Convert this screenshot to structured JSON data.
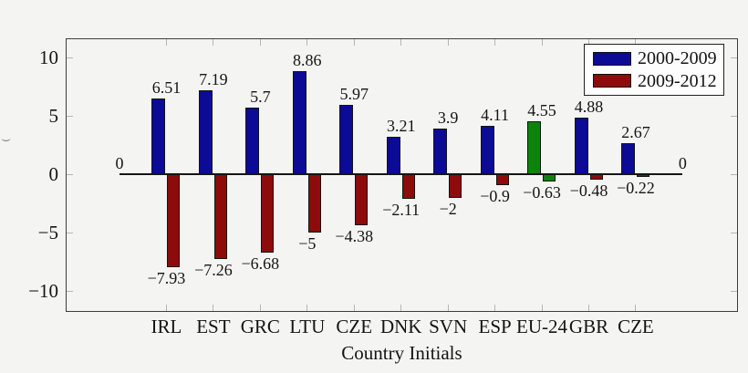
{
  "chart_data": {
    "type": "bar",
    "title": "",
    "xlabel": "Country Initials",
    "ylabel": "",
    "categories": [
      "IRL",
      "EST",
      "GRC",
      "LTU",
      "CZE",
      "DNK",
      "SVN",
      "ESP",
      "EU-24",
      "GBR",
      "CZE"
    ],
    "series": [
      {
        "name": "2000-2009",
        "color": "#0b0b96",
        "values": [
          6.51,
          7.19,
          5.7,
          8.86,
          5.97,
          3.21,
          3.9,
          4.11,
          4.55,
          4.88,
          2.67
        ],
        "labels": [
          "6.51",
          "7.19",
          "5.7",
          "8.86",
          "5.97",
          "3.21",
          "3.9",
          "4.11",
          "4.55",
          "4.88",
          "2.67"
        ]
      },
      {
        "name": "2009-2012",
        "color": "#8d0b0b",
        "values": [
          -7.93,
          -7.26,
          -6.68,
          -5,
          -4.38,
          -2.11,
          -2,
          -0.9,
          -0.63,
          -0.48,
          -0.22
        ],
        "labels": [
          "−7.93",
          "−7.26",
          "−6.68",
          "−5",
          "−4.38",
          "−2.11",
          "−2",
          "−0.9",
          "−0.63",
          "−0.48",
          "−0.22"
        ]
      }
    ],
    "highlight": {
      "category": "EU-24",
      "index": 8,
      "color": "#0c840c"
    },
    "edge_bars": {
      "left_value": 0,
      "left_label": "0",
      "right_value": 0,
      "right_label": "0"
    },
    "ylim": [
      -11.7,
      11.7
    ],
    "yticks": [
      10,
      5,
      0,
      -5,
      -10
    ],
    "ytick_labels": [
      "10",
      "5",
      "0",
      "−5",
      "−10"
    ],
    "grid": false,
    "legend_position": "top-right",
    "ylabel_fragment": ")"
  }
}
